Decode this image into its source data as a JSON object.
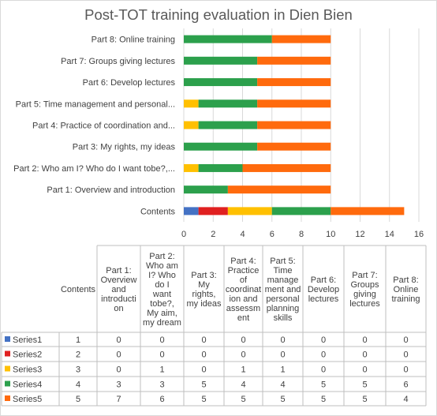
{
  "chart_data": {
    "type": "bar",
    "orientation": "horizontal",
    "stacked": true,
    "title": "Post-TOT training evaluation in Dien Bien",
    "categories": [
      "Contents",
      "Part 1: Overview and introduction",
      "Part 2: Who am I? Who do I want tobe?,...",
      "Part 3: My rights, my ideas",
      "Part 4: Practice of coordination and...",
      "Part 5: Time management and personal...",
      "Part 6: Develop lectures",
      "Part 7: Groups giving lectures",
      "Part 8: Online training"
    ],
    "table_headers": [
      "Contents",
      "Part 1: Overview and introducti on",
      "Part 2: Who am I? Who do I want tobe?, My aim, my dream",
      "Part 3: My rights, my ideas",
      "Part 4: Practice of coordinat ion and assessm ent",
      "Part 5: Time manage ment and personal planning skills",
      "Part 6: Develop lectures",
      "Part 7: Groups giving lectures",
      "Part 8: Online training"
    ],
    "series": [
      {
        "name": "Series1",
        "color": "#4472c4",
        "values": [
          1,
          0,
          0,
          0,
          0,
          0,
          0,
          0,
          0
        ]
      },
      {
        "name": "Series2",
        "color": "#e02020",
        "values": [
          2,
          0,
          0,
          0,
          0,
          0,
          0,
          0,
          0
        ]
      },
      {
        "name": "Series3",
        "color": "#ffc000",
        "values": [
          3,
          0,
          1,
          0,
          1,
          1,
          0,
          0,
          0
        ]
      },
      {
        "name": "Series4",
        "color": "#2ca04c",
        "values": [
          4,
          3,
          3,
          5,
          4,
          4,
          5,
          5,
          6
        ]
      },
      {
        "name": "Series5",
        "color": "#ff6a0d",
        "values": [
          5,
          7,
          6,
          5,
          5,
          5,
          5,
          5,
          4
        ]
      }
    ],
    "xlim": [
      0,
      16
    ],
    "xticks": [
      0,
      2,
      4,
      6,
      8,
      10,
      12,
      14,
      16
    ],
    "grid": true,
    "legend": "data-table"
  }
}
